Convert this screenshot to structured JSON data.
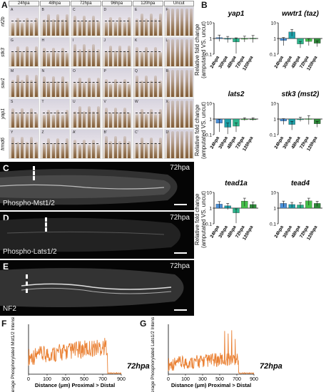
{
  "panels": {
    "A": "A",
    "B": "B",
    "C": "C",
    "D": "D",
    "E": "E",
    "F": "F",
    "G": "G"
  },
  "panelA": {
    "timepoints": [
      "24hpa",
      "48hpa",
      "72hpa",
      "96hpa",
      "120hpa",
      "Uncut"
    ],
    "genes": [
      "nf2b",
      "stk3",
      "sav1",
      "yap1",
      "frmd6"
    ],
    "sublabels": [
      [
        "A",
        "B",
        "C",
        "D",
        "E",
        "F"
      ],
      [
        "G",
        "H",
        "I",
        "J",
        "K",
        "L"
      ],
      [
        "M",
        "N",
        "O",
        "P",
        "Q",
        "R"
      ],
      [
        "S",
        "T",
        "U",
        "V",
        "W",
        "X"
      ],
      [
        "Y",
        "Z",
        "A'",
        "B'",
        "C'",
        "D'"
      ]
    ]
  },
  "microscopy": [
    {
      "label": "Phospho-Mst1/2",
      "time": "72hpa"
    },
    {
      "label": "Phospho-Lats1/2",
      "time": "72hpa"
    },
    {
      "label": "NF2",
      "time": "72hpa"
    }
  ],
  "lineplots": [
    {
      "panel": "F",
      "ylabel": "Average Phosphorylated Mst1/2 Intensity (a.u.)",
      "xlabel": "Distance (μm) Proximal > Distal",
      "time": "72hpa",
      "xticks": [
        "0",
        "100",
        "300",
        "500",
        "700",
        "900"
      ],
      "color": "#e8731e"
    },
    {
      "panel": "G",
      "ylabel": "Average Phosphorylated Lats1/2 Intensity (a.u.)",
      "xlabel": "Distance (μm) Proximal > Distal",
      "time": "72hpa",
      "xticks": [
        "0",
        "100",
        "300",
        "500",
        "700",
        "900"
      ],
      "color": "#e8731e"
    }
  ],
  "panelB": {
    "ytitle": "Relative fold change (amputated VS. uncut)",
    "yticks": [
      "10",
      "1",
      "0.1"
    ]
  },
  "chart_data": [
    {
      "type": "bar",
      "title": "yap1",
      "log_scale": true,
      "ylim": [
        0.1,
        10
      ],
      "categories": [
        "24hpa",
        "30hpa",
        "48hpa",
        "72hpa",
        "120hpa"
      ],
      "values": [
        1.15,
        0.95,
        0.6,
        1.0,
        1.05
      ],
      "errors": [
        0.5,
        0.4,
        0.5,
        0.4,
        0.5
      ],
      "colors": [
        "#4a90d9",
        "#1fa0a8",
        "#2bb58c",
        "#46c04a",
        "#2e8b3a"
      ]
    },
    {
      "type": "bar",
      "title": "wwtr1 (taz)",
      "log_scale": true,
      "ylim": [
        0.1,
        10
      ],
      "categories": [
        "24hpa",
        "30hpa",
        "48hpa",
        "72hpa",
        "120hpa"
      ],
      "values": [
        0.75,
        2.6,
        0.45,
        0.65,
        0.5
      ],
      "errors": [
        0.4,
        1.2,
        0.2,
        0.3,
        0.2
      ],
      "colors": [
        "#4a90d9",
        "#1fa0a8",
        "#2bb58c",
        "#46c04a",
        "#2e8b3a"
      ]
    },
    {
      "type": "bar",
      "title": "lats2",
      "log_scale": true,
      "ylim": [
        0.1,
        10
      ],
      "categories": [
        "24hpa",
        "30hpa",
        "48hpa",
        "72hpa",
        "120hpa"
      ],
      "values": [
        0.55,
        0.3,
        0.35,
        1.0,
        1.0
      ],
      "errors": [
        0.4,
        0.25,
        0.2,
        0.2,
        0.2
      ],
      "colors": [
        "#4a90d9",
        "#1fa0a8",
        "#2bb58c",
        "#46c04a",
        "#2e8b3a"
      ]
    },
    {
      "type": "bar",
      "title": "stk3 (mst2)",
      "log_scale": true,
      "ylim": [
        0.1,
        10
      ],
      "categories": [
        "24hpa",
        "30hpa",
        "48hpa",
        "72hpa",
        "120hpa"
      ],
      "values": [
        0.75,
        0.45,
        1.0,
        1.05,
        0.5
      ],
      "errors": [
        0.3,
        0.25,
        0.3,
        0.6,
        0.2
      ],
      "colors": [
        "#4a90d9",
        "#1fa0a8",
        "#2bb58c",
        "#46c04a",
        "#2e8b3a"
      ]
    },
    {
      "type": "bar",
      "title": "tead1a",
      "log_scale": true,
      "ylim": [
        0.1,
        10
      ],
      "categories": [
        "24hpa",
        "30hpa",
        "48hpa",
        "72hpa",
        "120hpa"
      ],
      "values": [
        1.8,
        1.4,
        0.5,
        2.8,
        1.7
      ],
      "errors": [
        0.8,
        0.6,
        0.4,
        1.5,
        0.7
      ],
      "colors": [
        "#4a90d9",
        "#1fa0a8",
        "#2bb58c",
        "#46c04a",
        "#2e8b3a"
      ]
    },
    {
      "type": "bar",
      "title": "tead4",
      "log_scale": true,
      "ylim": [
        0.1,
        10
      ],
      "categories": [
        "24hpa",
        "30hpa",
        "48hpa",
        "72hpa",
        "120hpa"
      ],
      "values": [
        2.0,
        1.7,
        1.6,
        2.9,
        2.0
      ],
      "errors": [
        0.8,
        0.6,
        0.6,
        1.4,
        0.7
      ],
      "colors": [
        "#4a90d9",
        "#1fa0a8",
        "#2bb58c",
        "#46c04a",
        "#2e8b3a"
      ]
    }
  ]
}
